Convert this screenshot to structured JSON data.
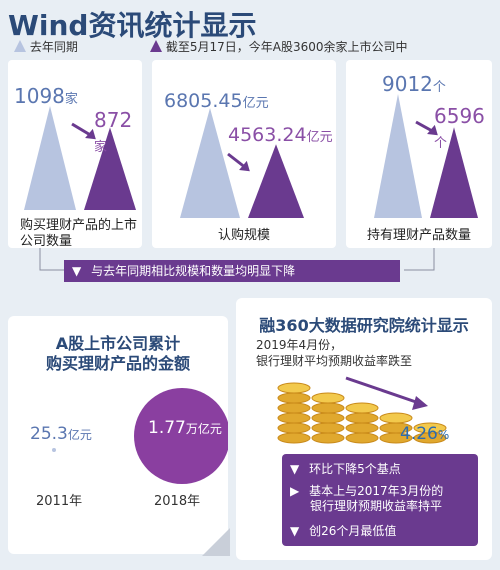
{
  "title": "Wind资讯统计显示",
  "legend": {
    "prev_label": "去年同期",
    "curr_label": "截至5月17日，今年A股3600余家上市公司中",
    "prev_color": "#b7c4e0",
    "curr_color": "#6a3a8f"
  },
  "chart_data": [
    {
      "type": "bar",
      "xlabel": "购买理财产品的上市公司数量",
      "categories": [
        "去年同期",
        "今年"
      ],
      "values": [
        1098,
        872
      ],
      "value_labels": {
        "v0": "1098",
        "u0": "家",
        "v1": "872",
        "u1": "家"
      }
    },
    {
      "type": "bar",
      "xlabel": "认购规模",
      "categories": [
        "去年同期",
        "今年"
      ],
      "values": [
        6805.45,
        4563.24
      ],
      "value_labels": {
        "v0": "6805.45",
        "u0": "亿元",
        "v1": "4563.24",
        "u1": "亿元"
      }
    },
    {
      "type": "bar",
      "xlabel": "持有理财产品数量",
      "categories": [
        "去年同期",
        "今年"
      ],
      "values": [
        9012,
        6596
      ],
      "value_labels": {
        "v0": "9012",
        "u0": "个",
        "v1": "6596",
        "u1": "个"
      }
    },
    {
      "type": "bar",
      "title": "A股上市公司累计购买理财产品的金额",
      "categories": [
        "2011年",
        "2018年"
      ],
      "values": [
        25.3,
        17700
      ],
      "value_labels": {
        "v0": "25.3",
        "u0": "亿元",
        "v1": "1.77",
        "u1": "万亿元"
      }
    }
  ],
  "banner_text": "与去年同期相比规模和数量均明显下降",
  "left_panel": {
    "title_line1": "A股上市公司累计",
    "title_line2": "购买理财产品的金额"
  },
  "right_panel": {
    "header": "融360大数据研究院统计显示",
    "sub_line1": "2019年4月份，",
    "sub_line2": "银行理财平均预期收益率跌至",
    "rate": "4.26",
    "rate_unit": "%",
    "bullets": [
      {
        "text": "环比下降5个基点"
      },
      {
        "text_line1": "基本上与2017年3月份的",
        "text_line2": "银行理财预期收益率持平"
      },
      {
        "text": "创26个月最低值"
      }
    ]
  }
}
